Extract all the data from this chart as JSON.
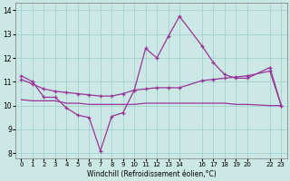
{
  "xlabel": "Windchill (Refroidissement éolien,°C)",
  "bg_color": "#cce8e4",
  "line_color": "#993399",
  "grid_color": "#99cccc",
  "xlim": [
    -0.5,
    23.5
  ],
  "ylim": [
    7.8,
    14.3
  ],
  "yticks": [
    8,
    9,
    10,
    11,
    12,
    13,
    14
  ],
  "xtick_positions": [
    0,
    1,
    2,
    3,
    4,
    5,
    6,
    7,
    8,
    9,
    10,
    11,
    12,
    13,
    14,
    16,
    17,
    18,
    19,
    20,
    22,
    23
  ],
  "xtick_labels": [
    "0",
    "1",
    "2",
    "3",
    "4",
    "5",
    "6",
    "7",
    "8",
    "9",
    "10",
    "11",
    "12",
    "13",
    "14",
    "16",
    "17",
    "18",
    "19",
    "20",
    "22",
    "23"
  ],
  "series1_x": [
    0,
    1,
    2,
    3,
    4,
    5,
    6,
    7,
    8,
    9,
    10,
    11,
    12,
    13,
    14,
    16,
    17,
    18,
    19,
    20,
    22,
    23
  ],
  "series1_y": [
    11.25,
    11.0,
    10.35,
    10.35,
    9.9,
    9.6,
    9.5,
    8.1,
    9.55,
    9.7,
    10.65,
    12.4,
    12.0,
    12.9,
    13.75,
    12.5,
    11.8,
    11.3,
    11.15,
    11.15,
    11.6,
    10.0
  ],
  "series2_x": [
    0,
    1,
    2,
    3,
    4,
    5,
    6,
    7,
    8,
    9,
    10,
    11,
    12,
    13,
    14,
    16,
    17,
    18,
    19,
    20,
    22,
    23
  ],
  "series2_y": [
    11.1,
    10.9,
    10.7,
    10.6,
    10.55,
    10.5,
    10.45,
    10.4,
    10.4,
    10.5,
    10.65,
    10.7,
    10.75,
    10.75,
    10.75,
    11.05,
    11.1,
    11.15,
    11.2,
    11.25,
    11.45,
    10.0
  ],
  "series3_x": [
    0,
    1,
    2,
    3,
    4,
    5,
    6,
    7,
    8,
    9,
    10,
    11,
    12,
    13,
    14,
    16,
    17,
    18,
    19,
    20,
    22,
    23
  ],
  "series3_y": [
    10.25,
    10.2,
    10.2,
    10.2,
    10.1,
    10.1,
    10.05,
    10.05,
    10.05,
    10.05,
    10.05,
    10.1,
    10.1,
    10.1,
    10.1,
    10.1,
    10.1,
    10.1,
    10.05,
    10.05,
    10.0,
    10.0
  ]
}
